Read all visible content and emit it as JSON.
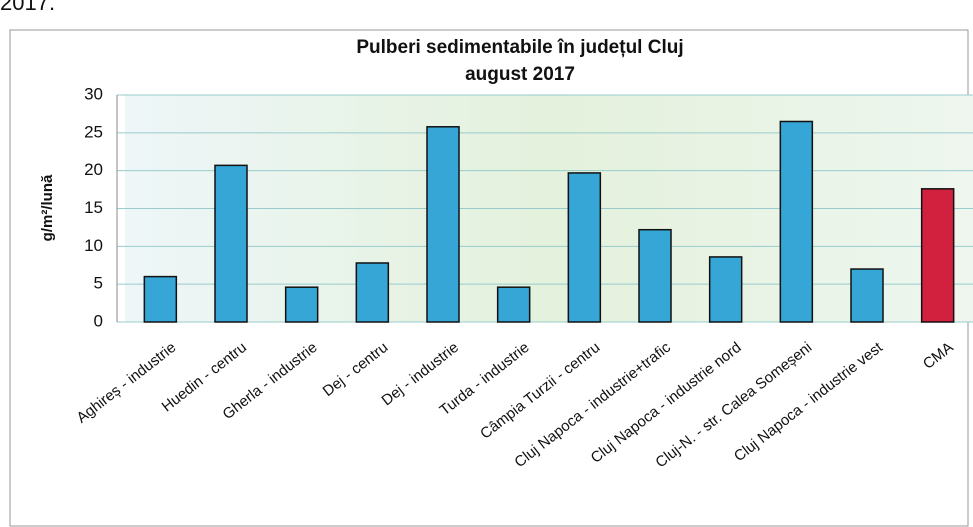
{
  "caption_fragment": "2017.",
  "chart_data": {
    "type": "bar",
    "title": "Pulberi sedimentabile în județul Cluj",
    "subtitle": "august 2017",
    "y_label": "g/m²/lună",
    "categories": [
      "Aghireș - industrie",
      "Huedin - centru",
      "Gherla - industrie",
      "Dej - centru",
      "Dej - industrie",
      "Turda - industrie",
      "Câmpia Turzii - centru",
      "Cluj Napoca - industrie+trafic",
      "Cluj Napoca - industrie nord",
      "Cluj-N. - str. Calea Someșeni",
      "Cluj Napoca - industrie vest",
      "CMA"
    ],
    "values": [
      6,
      20.7,
      4.6,
      7.8,
      25.8,
      4.6,
      19.7,
      12.2,
      8.6,
      26.5,
      7,
      17.6
    ],
    "colors": [
      "#35a6d6",
      "#35a6d6",
      "#35a6d6",
      "#35a6d6",
      "#35a6d6",
      "#35a6d6",
      "#35a6d6",
      "#35a6d6",
      "#35a6d6",
      "#35a6d6",
      "#35a6d6",
      "#d1213f"
    ],
    "ylim": [
      0,
      30
    ],
    "yticks": [
      0,
      5,
      10,
      15,
      20,
      25,
      30
    ],
    "grid": true
  }
}
